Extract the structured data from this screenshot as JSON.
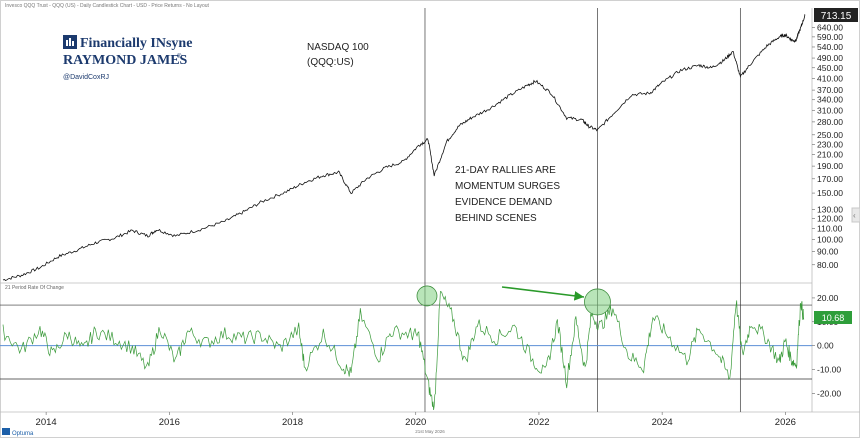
{
  "header": {
    "caption": "Invesco QQQ Trust - QQQ (US) - Daily Candlestick Chart - USD - Price Returns - No Layout"
  },
  "brand": {
    "line1": "Financially INsyne",
    "line2": "RAYMOND JAMES",
    "registered": "®",
    "handle": "@DavidCoxRJ"
  },
  "chart_data": [
    {
      "type": "line",
      "title": "NASDAQ 100",
      "subtitle": "(QQQ:US)",
      "yscale": "log",
      "ylim": [
        70,
        760
      ],
      "xlim": [
        2013.3,
        2026.4
      ],
      "grid": false,
      "last_value": "713.15",
      "y_ticks": [
        "640.00",
        "590.00",
        "540.00",
        "490.00",
        "450.00",
        "410.00",
        "370.00",
        "340.00",
        "310.00",
        "280.00",
        "250.00",
        "230.00",
        "210.00",
        "190.00",
        "170.00",
        "150.00",
        "130.00",
        "120.00",
        "110.00",
        "100.00",
        "90.00",
        "80.00"
      ],
      "series": [
        {
          "x": [
            2013.3,
            2013.6,
            2013.9,
            2014.2,
            2014.5,
            2014.8,
            2015.1,
            2015.4,
            2015.65,
            2015.8,
            2016.1,
            2016.5,
            2016.9,
            2017.2,
            2017.5,
            2017.9,
            2018.2,
            2018.5,
            2018.75,
            2018.95,
            2019.2,
            2019.5,
            2019.8,
            2020.05,
            2020.2,
            2020.3,
            2020.5,
            2020.7,
            2020.9,
            2021.2,
            2021.5,
            2021.8,
            2021.95,
            2022.2,
            2022.45,
            2022.7,
            2022.8,
            2022.95,
            2023.2,
            2023.5,
            2023.8,
            2024.0,
            2024.3,
            2024.6,
            2024.8,
            2025.0,
            2025.15,
            2025.27,
            2025.45,
            2025.7,
            2025.9,
            2026.0,
            2026.1,
            2026.17,
            2026.25,
            2026.32
          ],
          "y": [
            70,
            73,
            78,
            86,
            91,
            97,
            101,
            108,
            103,
            109,
            103,
            109,
            117,
            127,
            139,
            152,
            165,
            175,
            180,
            150,
            170,
            187,
            198,
            228,
            240,
            175,
            235,
            270,
            290,
            315,
            350,
            385,
            400,
            360,
            290,
            285,
            270,
            260,
            300,
            355,
            360,
            395,
            440,
            460,
            450,
            480,
            520,
            415,
            470,
            545,
            590,
            600,
            575,
            570,
            640,
            713
          ]
        }
      ],
      "annotations": [
        "21-DAY RALLIES ARE",
        "MOMENTUM SURGES",
        "EVIDENCE DEMAND",
        "BEHIND SCENES"
      ]
    },
    {
      "type": "line",
      "title": "21 Period Rate Of Change",
      "ylim": [
        -27,
        25
      ],
      "xlim": [
        2013.3,
        2026.4
      ],
      "last_value": "10.68",
      "y_ticks": [
        "20.00",
        "10.00",
        "0.00",
        "-10.00",
        "-20.00"
      ],
      "reference_lines": [
        17,
        0,
        -14
      ],
      "series": [
        {
          "x": [
            2013.3,
            2013.6,
            2013.9,
            2014.1,
            2014.35,
            2014.6,
            2014.8,
            2015.1,
            2015.4,
            2015.65,
            2015.85,
            2016.1,
            2016.3,
            2016.6,
            2016.9,
            2017.2,
            2017.5,
            2017.8,
            2018.1,
            2018.2,
            2018.5,
            2018.8,
            2018.95,
            2019.1,
            2019.4,
            2019.6,
            2019.9,
            2020.05,
            2020.2,
            2020.3,
            2020.4,
            2020.6,
            2020.8,
            2021.0,
            2021.3,
            2021.6,
            2021.9,
            2022.1,
            2022.3,
            2022.45,
            2022.6,
            2022.75,
            2022.85,
            2023.0,
            2023.2,
            2023.45,
            2023.7,
            2023.85,
            2024.1,
            2024.4,
            2024.6,
            2024.9,
            2025.1,
            2025.2,
            2025.3,
            2025.45,
            2025.7,
            2025.9,
            2026.0,
            2026.1,
            2026.18,
            2026.25,
            2026.3
          ],
          "y": [
            6,
            -2,
            7,
            -4,
            5,
            -2,
            6,
            3,
            -1,
            -10,
            8,
            -7,
            6,
            1,
            5,
            3,
            4,
            -1,
            7,
            -9,
            5,
            -8,
            -12,
            13,
            -5,
            6,
            5,
            4,
            -16,
            -27,
            22,
            12,
            -7,
            9,
            3,
            8,
            -6,
            -12,
            10,
            -15,
            11,
            -10,
            13,
            8,
            16,
            -4,
            -9,
            12,
            4,
            -6,
            7,
            -3,
            -14,
            19,
            -4,
            10,
            3,
            -7,
            2,
            -6,
            -8,
            19,
            11
          ]
        }
      ],
      "highlights": [
        2020.15,
        2022.95
      ]
    }
  ],
  "x_axis": {
    "labels": [
      "2014",
      "2016",
      "2018",
      "2020",
      "2022",
      "2024",
      "2026"
    ],
    "values": [
      2014,
      2016,
      2018,
      2020,
      2022,
      2024,
      2026
    ],
    "date_footer": "21st May 2026",
    "event_lines": [
      2020.15,
      2022.95,
      2025.27
    ]
  },
  "footer": {
    "brand": "Optuma"
  },
  "colors": {
    "price_line": "#111111",
    "roc_line": "#3a9a3a",
    "zero_line": "#5b8fd6",
    "reference_line": "#333333",
    "highlight_fill": "#7fcf7f",
    "arrow": "#2a9a2a",
    "last_price_box": "#222222",
    "last_roc_box": "#2e9e3a",
    "brand_blue": "#1c3a6e"
  }
}
